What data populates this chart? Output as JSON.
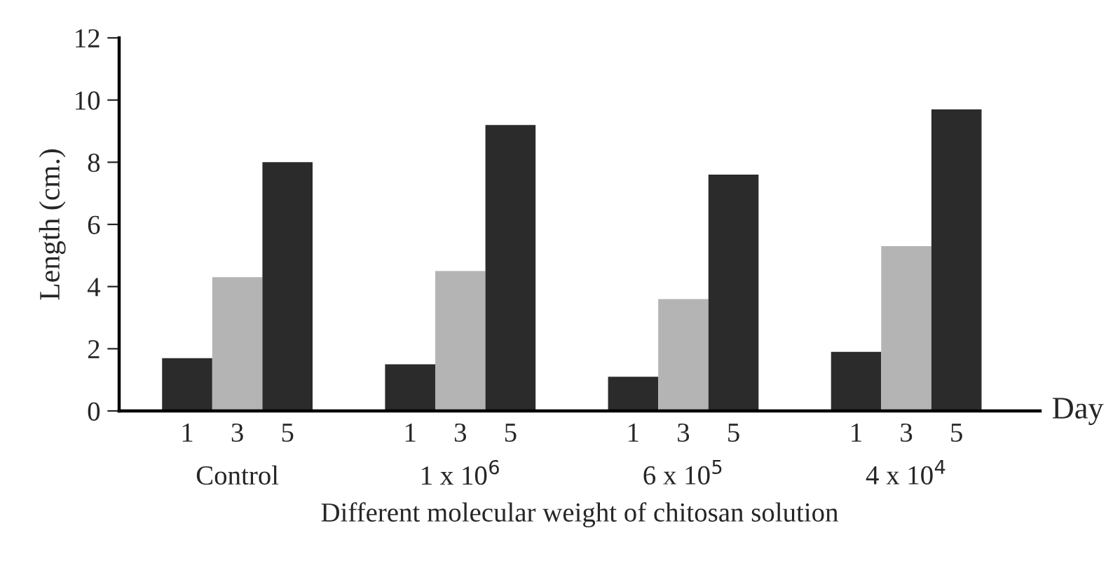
{
  "chart_data": {
    "type": "bar",
    "categories": [
      "Control",
      "1 x 10$^{6}$",
      "6 x 10$^{5}$",
      "4 x 10$^{4}$"
    ],
    "series": [
      {
        "name": "1",
        "color": "#2b2b2b",
        "values": [
          1.7,
          1.5,
          1.1,
          1.9
        ]
      },
      {
        "name": "3",
        "color": "#b4b4b4",
        "values": [
          4.3,
          4.5,
          3.6,
          5.3
        ]
      },
      {
        "name": "5",
        "color": "#2b2b2b",
        "values": [
          8.0,
          9.2,
          7.6,
          9.7
        ]
      }
    ],
    "xlabel": "Different molecular weight of chitosan solution",
    "ylabel": "Length (cm.)",
    "annotations": [
      "Day"
    ],
    "ylim": [
      0,
      12
    ],
    "yticks": [
      0,
      2,
      4,
      6,
      8,
      10,
      12
    ],
    "grid": false,
    "legend": false
  }
}
